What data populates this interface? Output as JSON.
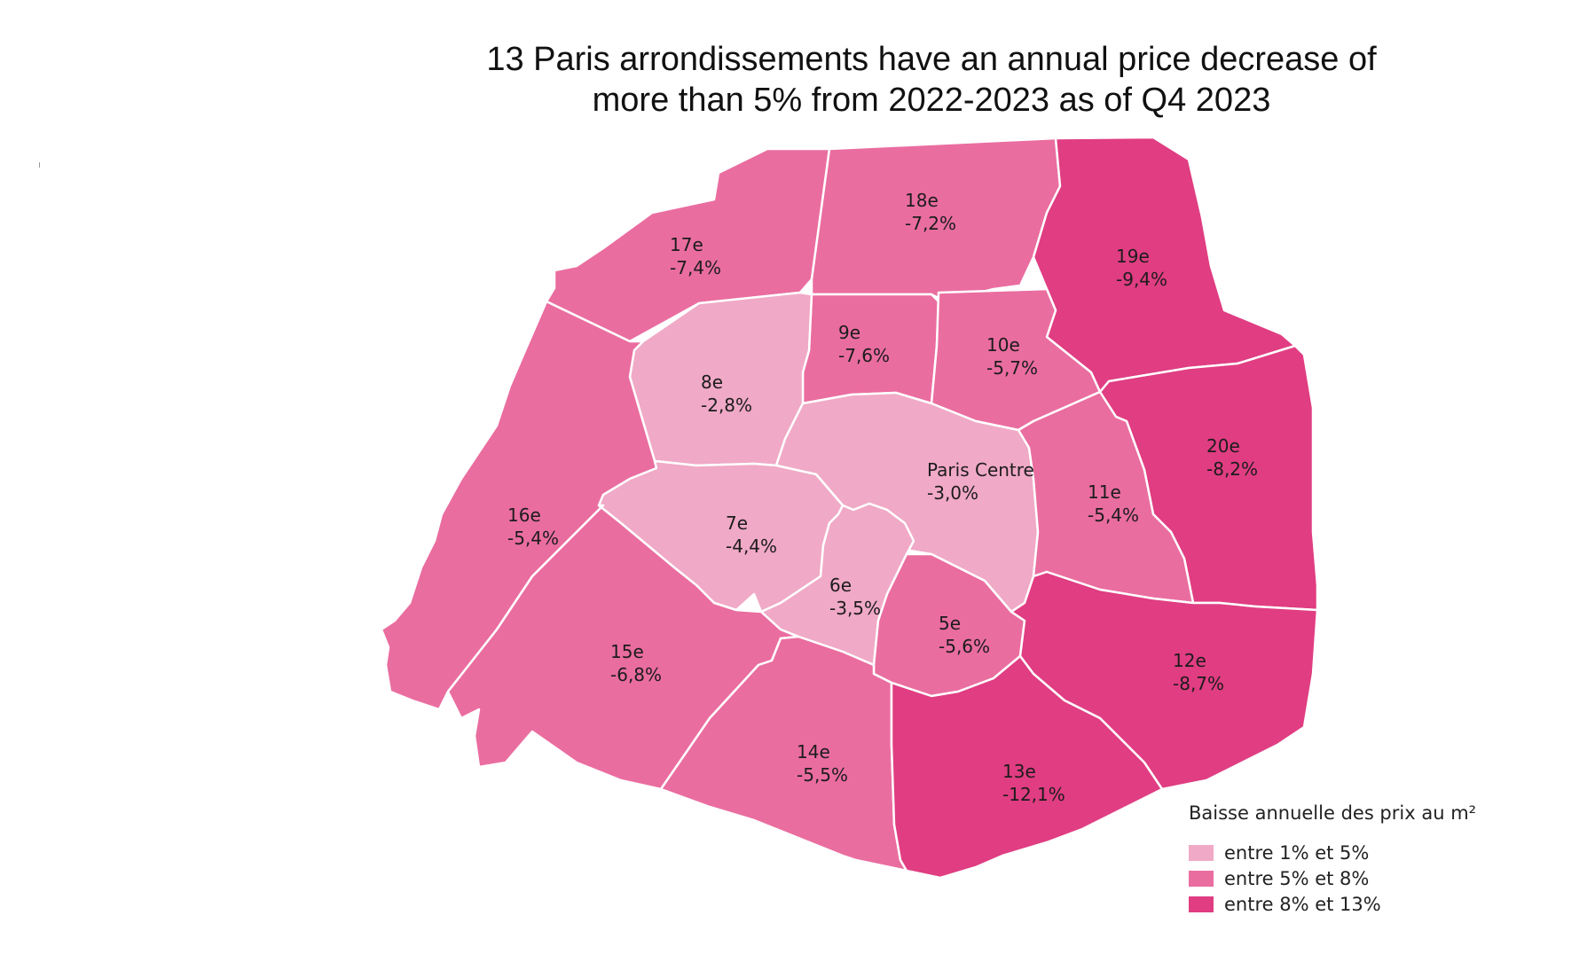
{
  "title": {
    "line1": "13 Paris arrondissements have an annual price decrease of",
    "line2": "more than 5% from 2022-2023 as of Q4 2023"
  },
  "colors": {
    "low": "#f0a9c6",
    "mid": "#ea6da0",
    "high": "#e03d82",
    "border": "#ffffff"
  },
  "legend": {
    "title": "Baisse annuelle des prix au m²",
    "items": [
      {
        "label": "entre 1% et 5%",
        "class": "low"
      },
      {
        "label": "entre 5% et 8%",
        "class": "mid"
      },
      {
        "label": "entre 8% et 13%",
        "class": "high"
      }
    ]
  },
  "districts": [
    {
      "name": "17e",
      "value": "-7,4%",
      "change_pct": -7.4,
      "class": "mid"
    },
    {
      "name": "18e",
      "value": "-7,2%",
      "change_pct": -7.2,
      "class": "mid"
    },
    {
      "name": "19e",
      "value": "-9,4%",
      "change_pct": -9.4,
      "class": "high"
    },
    {
      "name": "9e",
      "value": "-7,6%",
      "change_pct": -7.6,
      "class": "mid"
    },
    {
      "name": "10e",
      "value": "-5,7%",
      "change_pct": -5.7,
      "class": "mid"
    },
    {
      "name": "8e",
      "value": "-2,8%",
      "change_pct": -2.8,
      "class": "low"
    },
    {
      "name": "Paris Centre",
      "value": "-3,0%",
      "change_pct": -3.0,
      "class": "low"
    },
    {
      "name": "20e",
      "value": "-8,2%",
      "change_pct": -8.2,
      "class": "high"
    },
    {
      "name": "11e",
      "value": "-5,4%",
      "change_pct": -5.4,
      "class": "mid"
    },
    {
      "name": "16e",
      "value": "-5,4%",
      "change_pct": -5.4,
      "class": "mid"
    },
    {
      "name": "7e",
      "value": "-4,4%",
      "change_pct": -4.4,
      "class": "low"
    },
    {
      "name": "6e",
      "value": "-3,5%",
      "change_pct": -3.5,
      "class": "low"
    },
    {
      "name": "5e",
      "value": "-5,6%",
      "change_pct": -5.6,
      "class": "mid"
    },
    {
      "name": "15e",
      "value": "-6,8%",
      "change_pct": -6.8,
      "class": "mid"
    },
    {
      "name": "12e",
      "value": "-8,7%",
      "change_pct": -8.7,
      "class": "high"
    },
    {
      "name": "14e",
      "value": "-5,5%",
      "change_pct": -5.5,
      "class": "mid"
    },
    {
      "name": "13e",
      "value": "-12,1%",
      "change_pct": -12.1,
      "class": "high"
    }
  ]
}
